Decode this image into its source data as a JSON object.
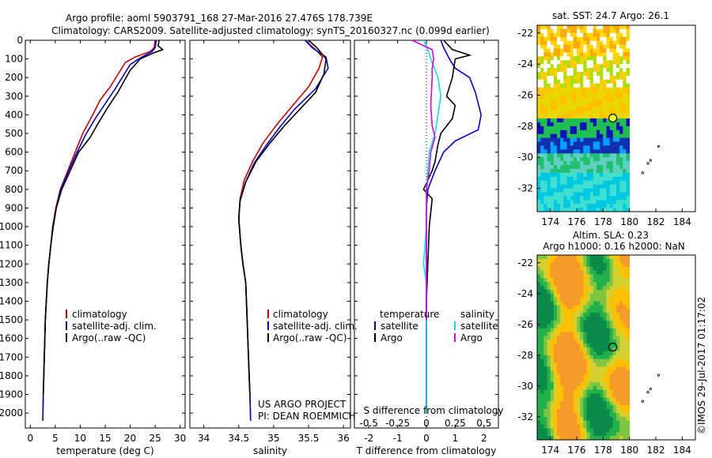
{
  "header": {
    "line1": "Argo profile: aoml 5903791_168 27-Mar-2016 27.476S 178.739E",
    "line2": "Climatology: CARS2009. Satellite-adjusted climatology: synTS_20160327.nc (0.099d earlier)"
  },
  "legend_labels": [
    "climatology",
    "satellite-adj. clim.",
    "Argo(..raw -QC)"
  ],
  "colors": {
    "climatology": "#cc0000",
    "satellite": "#0000cc",
    "argo": "#000000",
    "cyan": "#00e5e5",
    "magenta": "#e000e0"
  },
  "credits": {
    "project": "US ARGO PROJECT",
    "pi": "PI: DEAN ROEMMICH"
  },
  "timestamp": "©IMOS 29-Jul-2017 01:17:02",
  "chart_data": [
    {
      "type": "line",
      "xlabel": "temperature (deg C)",
      "ylim": [
        2080,
        0
      ],
      "xlim": [
        -1,
        31
      ],
      "xticks": [
        0,
        5,
        10,
        15,
        20,
        25,
        30
      ],
      "yticks": [
        0,
        100,
        200,
        300,
        400,
        500,
        600,
        700,
        800,
        900,
        1000,
        1100,
        1200,
        1300,
        1400,
        1500,
        1600,
        1700,
        1800,
        1900,
        2000
      ],
      "series": [
        {
          "name": "climatology",
          "color": "#cc0000",
          "points": [
            [
              25,
              0
            ],
            [
              24.8,
              40
            ],
            [
              24,
              60
            ],
            [
              21,
              90
            ],
            [
              19,
              120
            ],
            [
              16,
              250
            ],
            [
              14,
              320
            ],
            [
              12.5,
              400
            ],
            [
              10.5,
              500
            ],
            [
              9,
              600
            ],
            [
              7.5,
              700
            ],
            [
              6,
              800
            ],
            [
              5.1,
              900
            ],
            [
              4.5,
              1000
            ],
            [
              4.1,
              1100
            ],
            [
              3.7,
              1200
            ],
            [
              3.4,
              1300
            ],
            [
              3.2,
              1400
            ],
            [
              3,
              1500
            ],
            [
              2.8,
              1700
            ],
            [
              2.6,
              1900
            ],
            [
              2.5,
              2040
            ]
          ]
        },
        {
          "name": "satellite-adj. clim.",
          "color": "#0000cc",
          "points": [
            [
              25.2,
              0
            ],
            [
              25,
              40
            ],
            [
              24.4,
              60
            ],
            [
              22,
              95
            ],
            [
              20,
              130
            ],
            [
              17,
              260
            ],
            [
              15,
              340
            ],
            [
              13,
              420
            ],
            [
              11,
              510
            ],
            [
              9.2,
              610
            ],
            [
              7.6,
              705
            ],
            [
              6.1,
              800
            ],
            [
              5.2,
              900
            ],
            [
              4.5,
              1000
            ],
            [
              4.1,
              1100
            ],
            [
              3.7,
              1200
            ],
            [
              3.4,
              1300
            ],
            [
              3.2,
              1400
            ],
            [
              3,
              1500
            ],
            [
              2.8,
              1700
            ],
            [
              2.6,
              1900
            ],
            [
              2.5,
              2040
            ]
          ]
        },
        {
          "name": "Argo(..raw -QC)",
          "color": "#000000",
          "points": [
            [
              25.8,
              0
            ],
            [
              25.6,
              30
            ],
            [
              26.5,
              50
            ],
            [
              24.5,
              70
            ],
            [
              22,
              100
            ],
            [
              20,
              160
            ],
            [
              17.5,
              280
            ],
            [
              15.5,
              360
            ],
            [
              13.5,
              450
            ],
            [
              12,
              520
            ],
            [
              9.7,
              600
            ],
            [
              8,
              700
            ],
            [
              6.3,
              800
            ],
            [
              5.2,
              900
            ],
            [
              4.6,
              1000
            ],
            [
              4.1,
              1100
            ],
            [
              3.7,
              1200
            ],
            [
              3.4,
              1300
            ],
            [
              3.2,
              1400
            ],
            [
              3,
              1500
            ],
            [
              2.8,
              1700
            ],
            [
              2.6,
              1900
            ]
          ]
        }
      ]
    },
    {
      "type": "line",
      "xlabel": "salinity",
      "ylim": [
        2080,
        0
      ],
      "xlim": [
        33.8,
        36.1
      ],
      "xticks": [
        34,
        34.5,
        35,
        35.5,
        36
      ],
      "series": [
        {
          "name": "climatology",
          "color": "#cc0000",
          "points": [
            [
              35.45,
              0
            ],
            [
              35.6,
              50
            ],
            [
              35.7,
              90
            ],
            [
              35.65,
              150
            ],
            [
              35.5,
              250
            ],
            [
              35.25,
              360
            ],
            [
              35.05,
              450
            ],
            [
              34.85,
              550
            ],
            [
              34.7,
              650
            ],
            [
              34.58,
              750
            ],
            [
              34.52,
              850
            ],
            [
              34.5,
              950
            ],
            [
              34.53,
              1100
            ],
            [
              34.56,
              1200
            ],
            [
              34.6,
              1300
            ],
            [
              34.62,
              1500
            ],
            [
              34.64,
              1700
            ],
            [
              34.66,
              1900
            ],
            [
              34.67,
              2040
            ]
          ]
        },
        {
          "name": "satellite-adj. clim.",
          "color": "#0000cc",
          "points": [
            [
              35.45,
              0
            ],
            [
              35.55,
              40
            ],
            [
              35.75,
              90
            ],
            [
              35.78,
              150
            ],
            [
              35.6,
              260
            ],
            [
              35.3,
              370
            ],
            [
              35.1,
              460
            ],
            [
              34.9,
              560
            ],
            [
              34.72,
              660
            ],
            [
              34.6,
              760
            ],
            [
              34.52,
              860
            ],
            [
              34.5,
              960
            ],
            [
              34.53,
              1100
            ],
            [
              34.56,
              1200
            ],
            [
              34.6,
              1300
            ],
            [
              34.62,
              1500
            ],
            [
              34.64,
              1700
            ],
            [
              34.66,
              1900
            ],
            [
              34.67,
              2040
            ]
          ]
        },
        {
          "name": "Argo(..raw -QC)",
          "color": "#000000",
          "points": [
            [
              35.5,
              0
            ],
            [
              35.62,
              40
            ],
            [
              35.75,
              100
            ],
            [
              35.72,
              180
            ],
            [
              35.6,
              280
            ],
            [
              35.35,
              380
            ],
            [
              35.15,
              460
            ],
            [
              34.95,
              550
            ],
            [
              34.75,
              650
            ],
            [
              34.6,
              760
            ],
            [
              34.52,
              860
            ],
            [
              34.5,
              960
            ],
            [
              34.53,
              1100
            ],
            [
              34.56,
              1200
            ],
            [
              34.6,
              1300
            ],
            [
              34.62,
              1500
            ],
            [
              34.64,
              1700
            ],
            [
              34.66,
              1900
            ]
          ]
        }
      ]
    },
    {
      "type": "line",
      "xlabel": "T difference from climatology",
      "xlabel_top": "S difference from climatology",
      "ylim": [
        2080,
        0
      ],
      "xlim": [
        -2.5,
        2.5
      ],
      "xticks": [
        -2,
        -1,
        0,
        1,
        2
      ],
      "sticks": [
        "-0.5",
        "-0.25",
        "0",
        "0.25",
        "0.5"
      ],
      "legend": {
        "temperature": "temperature",
        "salinity": "salinity",
        "satellite": "satellite",
        "argo": "Argo"
      },
      "series": [
        {
          "name": "temperature satellite",
          "color": "#0000cc",
          "points": [
            [
              0.5,
              0
            ],
            [
              0.6,
              40
            ],
            [
              0.8,
              100
            ],
            [
              1.0,
              150
            ],
            [
              1.5,
              200
            ],
            [
              1.7,
              280
            ],
            [
              1.9,
              400
            ],
            [
              1.8,
              480
            ],
            [
              1.0,
              540
            ],
            [
              0.6,
              600
            ],
            [
              0.3,
              700
            ],
            [
              0.05,
              800
            ],
            [
              0,
              900
            ],
            [
              0,
              1100
            ],
            [
              0,
              1500
            ],
            [
              0,
              2000
            ]
          ]
        },
        {
          "name": "temperature Argo",
          "color": "#000000",
          "points": [
            [
              0.6,
              0
            ],
            [
              0.9,
              50
            ],
            [
              1.5,
              80
            ],
            [
              1.0,
              100
            ],
            [
              0.9,
              200
            ],
            [
              0.7,
              300
            ],
            [
              1.0,
              350
            ],
            [
              0.9,
              420
            ],
            [
              0.5,
              500
            ],
            [
              0.4,
              560
            ],
            [
              0.3,
              650
            ],
            [
              0.2,
              700
            ],
            [
              -0.1,
              800
            ],
            [
              0.2,
              850
            ],
            [
              0.1,
              1000
            ],
            [
              0.05,
              1200
            ],
            [
              0,
              1400
            ],
            [
              0,
              2000
            ]
          ]
        },
        {
          "name": "salinity satellite",
          "color": "#00e5e5",
          "points": [
            [
              -0.1,
              0
            ],
            [
              0.05,
              50
            ],
            [
              0.15,
              100
            ],
            [
              0.4,
              200
            ],
            [
              0.5,
              300
            ],
            [
              0.4,
              400
            ],
            [
              0.3,
              500
            ],
            [
              0.1,
              600
            ],
            [
              0,
              800
            ],
            [
              0,
              1000
            ],
            [
              -0.1,
              1200
            ],
            [
              0,
              1300
            ],
            [
              0,
              1500
            ],
            [
              0,
              2000
            ]
          ]
        },
        {
          "name": "salinity Argo",
          "color": "#e000e0",
          "points": [
            [
              -0.5,
              0
            ],
            [
              0.2,
              50
            ],
            [
              0.25,
              100
            ],
            [
              0.2,
              150
            ],
            [
              0.2,
              200
            ],
            [
              0.15,
              350
            ],
            [
              0.2,
              460
            ],
            [
              0.3,
              520
            ],
            [
              0.15,
              600
            ],
            [
              0.1,
              700
            ],
            [
              0,
              800
            ],
            [
              0,
              1000
            ],
            [
              0,
              1500
            ]
          ]
        }
      ]
    },
    {
      "type": "heatmap",
      "title": "sat. SST: 24.7 Argo: 26.1",
      "xlim": [
        173,
        185
      ],
      "ylim": [
        -33.5,
        -21.5
      ],
      "xticks": [
        174,
        176,
        178,
        180,
        182,
        184
      ],
      "yticks": [
        -22,
        -24,
        -26,
        -28,
        -30,
        -32
      ],
      "marker": {
        "lon": 178.739,
        "lat": -27.476
      }
    },
    {
      "type": "heatmap",
      "title_line1": "Altim. SLA: 0.23",
      "title_line2": "Argo h1000: 0.16 h2000: NaN",
      "xlim": [
        173,
        185
      ],
      "ylim": [
        -33.5,
        -21.5
      ],
      "xticks": [
        174,
        176,
        178,
        180,
        182,
        184
      ],
      "yticks": [
        -22,
        -24,
        -26,
        -28,
        -30,
        -32
      ],
      "marker": {
        "lon": 178.739,
        "lat": -27.476
      }
    }
  ]
}
